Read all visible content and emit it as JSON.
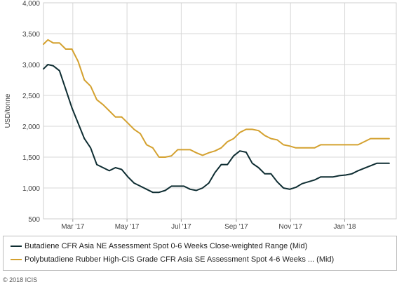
{
  "chart_data": {
    "type": "line",
    "title": "",
    "xlabel": "",
    "ylabel": "USD/tonne",
    "ylim": [
      500,
      4000
    ],
    "yticks": [
      "500",
      "1,000",
      "1,500",
      "2,000",
      "2,500",
      "3,000",
      "3,500",
      "4,000"
    ],
    "xticks": [
      "Mar '17",
      "May '17",
      "Jul '17",
      "Sep '17",
      "Nov '17",
      "Jan '18"
    ],
    "grid": true,
    "legend": "bottom",
    "x_start": "2017-01-27",
    "x_end": "2018-02-28",
    "series": [
      {
        "name": "Butadiene CFR Asia NE Assessment Spot 0-6 Weeks Close-weighted Range (Mid)",
        "color": "#0e2d32",
        "x": [
          "2017-01-27",
          "2017-02-01",
          "2017-02-07",
          "2017-02-14",
          "2017-02-21",
          "2017-02-28",
          "2017-03-07",
          "2017-03-14",
          "2017-03-21",
          "2017-03-28",
          "2017-04-04",
          "2017-04-11",
          "2017-04-18",
          "2017-04-25",
          "2017-05-02",
          "2017-05-09",
          "2017-05-16",
          "2017-05-23",
          "2017-05-30",
          "2017-06-06",
          "2017-06-13",
          "2017-06-20",
          "2017-06-27",
          "2017-07-04",
          "2017-07-11",
          "2017-07-18",
          "2017-07-25",
          "2017-08-01",
          "2017-08-08",
          "2017-08-15",
          "2017-08-22",
          "2017-08-29",
          "2017-09-05",
          "2017-09-12",
          "2017-09-19",
          "2017-09-26",
          "2017-10-03",
          "2017-10-10",
          "2017-10-17",
          "2017-10-24",
          "2017-10-31",
          "2017-11-07",
          "2017-11-14",
          "2017-11-21",
          "2017-11-28",
          "2017-12-05",
          "2017-12-12",
          "2017-12-19",
          "2017-12-26",
          "2018-01-02",
          "2018-01-09",
          "2018-01-16",
          "2018-01-23",
          "2018-01-30",
          "2018-02-06",
          "2018-02-13",
          "2018-02-20"
        ],
        "y": [
          2930,
          3000,
          2980,
          2900,
          2600,
          2300,
          2050,
          1800,
          1650,
          1380,
          1330,
          1280,
          1330,
          1300,
          1180,
          1080,
          1030,
          980,
          930,
          930,
          960,
          1030,
          1030,
          1030,
          980,
          960,
          1000,
          1080,
          1250,
          1380,
          1380,
          1520,
          1600,
          1580,
          1400,
          1330,
          1230,
          1230,
          1100,
          1000,
          980,
          1010,
          1070,
          1100,
          1130,
          1180,
          1180,
          1180,
          1200,
          1210,
          1230,
          1280,
          1320,
          1360,
          1400,
          1400,
          1400
        ]
      },
      {
        "name": "Polybutadiene Rubber High-CIS Grade CFR Asia SE Assessment Spot 4-6 Weeks ... (Mid)",
        "color": "#d4a12f",
        "x": [
          "2017-01-27",
          "2017-02-01",
          "2017-02-07",
          "2017-02-14",
          "2017-02-21",
          "2017-02-28",
          "2017-03-07",
          "2017-03-14",
          "2017-03-21",
          "2017-03-28",
          "2017-04-04",
          "2017-04-11",
          "2017-04-18",
          "2017-04-25",
          "2017-05-02",
          "2017-05-09",
          "2017-05-16",
          "2017-05-23",
          "2017-05-30",
          "2017-06-06",
          "2017-06-13",
          "2017-06-20",
          "2017-06-27",
          "2017-07-04",
          "2017-07-11",
          "2017-07-18",
          "2017-07-25",
          "2017-08-01",
          "2017-08-08",
          "2017-08-15",
          "2017-08-22",
          "2017-08-29",
          "2017-09-05",
          "2017-09-12",
          "2017-09-19",
          "2017-09-26",
          "2017-10-03",
          "2017-10-10",
          "2017-10-17",
          "2017-10-24",
          "2017-10-31",
          "2017-11-07",
          "2017-11-14",
          "2017-11-21",
          "2017-11-28",
          "2017-12-05",
          "2017-12-12",
          "2017-12-19",
          "2017-12-26",
          "2018-01-02",
          "2018-01-09",
          "2018-01-16",
          "2018-01-23",
          "2018-01-30",
          "2018-02-06",
          "2018-02-13",
          "2018-02-20"
        ],
        "y": [
          3330,
          3400,
          3350,
          3350,
          3250,
          3250,
          3050,
          2750,
          2650,
          2430,
          2350,
          2250,
          2150,
          2150,
          2050,
          1950,
          1880,
          1700,
          1650,
          1500,
          1500,
          1520,
          1620,
          1620,
          1620,
          1570,
          1530,
          1570,
          1600,
          1650,
          1750,
          1800,
          1900,
          1950,
          1950,
          1930,
          1850,
          1800,
          1780,
          1700,
          1680,
          1650,
          1650,
          1650,
          1650,
          1700,
          1700,
          1700,
          1700,
          1700,
          1700,
          1700,
          1750,
          1800,
          1800,
          1800,
          1800
        ]
      }
    ]
  },
  "footer": {
    "copyright": "© 2018 ICIS"
  }
}
